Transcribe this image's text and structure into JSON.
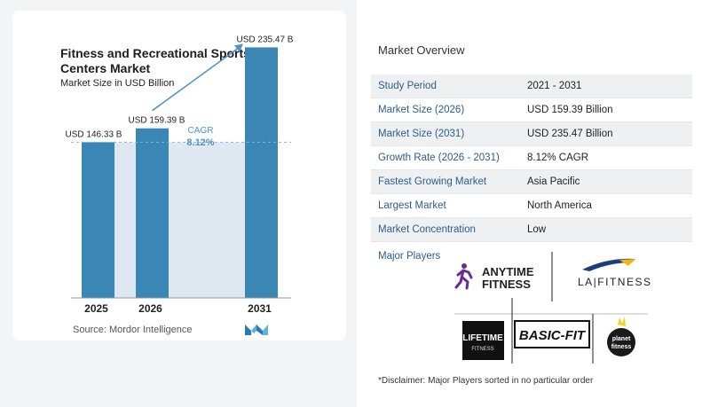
{
  "chart": {
    "title": "Fitness and Recreational Sports Centers Market",
    "subtitle": "Market Size in USD Billion",
    "source": "Source:  Mordor Intelligence",
    "cagr_label": "CAGR",
    "cagr_value": "8.12%"
  },
  "chart_data": {
    "type": "bar",
    "title": "Fitness and Recreational Sports Centers Market",
    "subtitle": "Market Size in USD Billion",
    "categories": [
      "2025",
      "2026",
      "2031"
    ],
    "values": [
      146.33,
      159.39,
      235.47
    ],
    "data_labels": [
      "USD 146.33 B",
      "USD 159.39 B",
      "USD 235.47 B"
    ],
    "ylim": [
      0,
      250
    ],
    "grid": false,
    "colors": {
      "bar": "#3a86b4",
      "band": "#dfe8f0",
      "arrow": "#4d94c1"
    }
  },
  "overview": {
    "title": "Market Overview",
    "rows": [
      {
        "label": "Study Period",
        "value": "2021 - 2031"
      },
      {
        "label": "Market Size (2026)",
        "value": "USD 159.39 Billion"
      },
      {
        "label": "Market Size (2031)",
        "value": "USD 235.47 Billion"
      },
      {
        "label": "Growth Rate (2026 - 2031)",
        "value": "8.12% CAGR"
      },
      {
        "label": "Fastest Growing Market",
        "value": "Asia Pacific"
      },
      {
        "label": "Largest Market",
        "value": "North America"
      },
      {
        "label": "Market Concentration",
        "value": "Low"
      }
    ]
  },
  "players": {
    "label": "Major Players",
    "logos": [
      {
        "name": "anytime-fitness",
        "text_1": "ANYTIME",
        "text_2": "FITNESS"
      },
      {
        "name": "la-fitness",
        "text_1": "LA|FITNESS"
      },
      {
        "name": "lifetime-fitness",
        "text_1": "LIFETIME",
        "text_2": "FITNESS"
      },
      {
        "name": "basic-fit",
        "text_1": "BASIC-FIT"
      },
      {
        "name": "planet-fitness",
        "text_1": "planet",
        "text_2": "fitness"
      }
    ]
  },
  "disclaimer": "*Disclaimer: Major Players sorted in no particular order"
}
